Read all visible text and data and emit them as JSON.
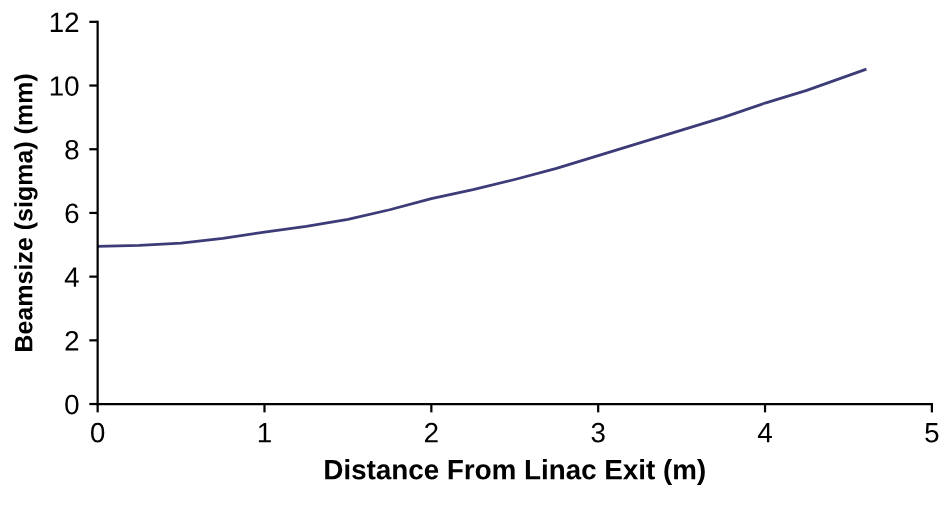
{
  "chart_data": {
    "type": "line",
    "xlabel": "Distance From Linac Exit (m)",
    "ylabel": "Beamsize (sigma) (mm)",
    "series": [
      {
        "color": "#3c3c78",
        "x": [
          0,
          0.25,
          0.5,
          0.75,
          1,
          1.25,
          1.5,
          1.75,
          2,
          2.25,
          2.5,
          2.75,
          3,
          3.25,
          3.5,
          3.75,
          4,
          4.25,
          4.6
        ],
        "values": [
          4.95,
          4.98,
          5.05,
          5.2,
          5.4,
          5.58,
          5.8,
          6.1,
          6.45,
          6.73,
          7.05,
          7.4,
          7.8,
          8.2,
          8.6,
          9.0,
          9.45,
          9.85,
          10.5
        ]
      }
    ],
    "xlim": [
      0,
      5
    ],
    "xticks": [
      0,
      1,
      2,
      3,
      4,
      5
    ],
    "ylim": [
      0,
      12
    ],
    "yticks": [
      0,
      2,
      4,
      6,
      8,
      10,
      12
    ],
    "grid": false,
    "legend": false,
    "marker": "none",
    "line_style": "solid"
  }
}
